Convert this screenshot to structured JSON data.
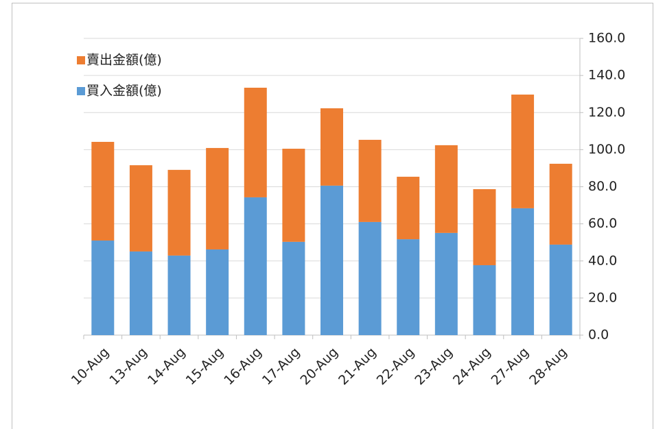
{
  "chart_data": {
    "type": "stacked_bar",
    "categories": [
      "10-Aug",
      "13-Aug",
      "14-Aug",
      "15-Aug",
      "16-Aug",
      "17-Aug",
      "20-Aug",
      "21-Aug",
      "22-Aug",
      "23-Aug",
      "24-Aug",
      "27-Aug",
      "28-Aug"
    ],
    "series": [
      {
        "name": "買入金額(億)",
        "color": "#5b9bd5",
        "values": [
          51.0,
          45.1,
          42.9,
          46.2,
          74.3,
          50.3,
          80.6,
          61.0,
          51.7,
          55.1,
          37.7,
          68.4,
          48.8
        ]
      },
      {
        "name": "賣出金額(億)",
        "color": "#ed7d31",
        "values": [
          53.2,
          46.5,
          46.2,
          54.7,
          59.1,
          50.2,
          41.7,
          44.3,
          33.7,
          47.3,
          41.0,
          61.3,
          43.6
        ]
      }
    ],
    "ylim": [
      0,
      160
    ],
    "yticks": [
      {
        "value": 0,
        "label": "0.0"
      },
      {
        "value": 20,
        "label": "20.0"
      },
      {
        "value": 40,
        "label": "40.0"
      },
      {
        "value": 60,
        "label": "60.0"
      },
      {
        "value": 80,
        "label": "80.0"
      },
      {
        "value": 100,
        "label": "100.0"
      },
      {
        "value": 120,
        "label": "120.0"
      },
      {
        "value": 140,
        "label": "140.0"
      },
      {
        "value": 160,
        "label": "160.0"
      }
    ],
    "y_axis_side": "right",
    "grid": true,
    "legend_position": "top-left"
  }
}
